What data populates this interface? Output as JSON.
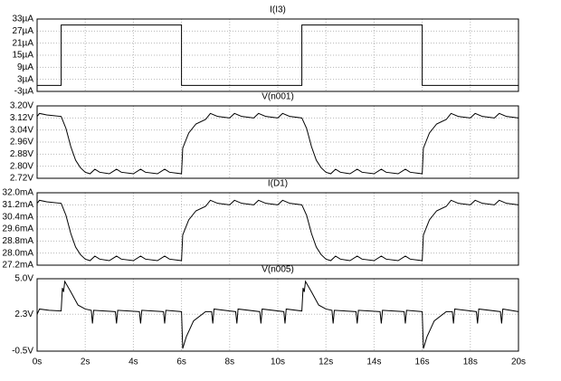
{
  "chart_data": [
    {
      "type": "line",
      "title": "I(I3)",
      "color": "#000000",
      "grid": true,
      "x": [
        0,
        1,
        1,
        6,
        6,
        11,
        11,
        16,
        16,
        20
      ],
      "values": [
        0,
        0,
        30,
        30,
        0,
        0,
        30,
        30,
        0,
        0
      ],
      "xlim": [
        0,
        20
      ],
      "ylim": [
        -3,
        33
      ],
      "yticks": [
        {
          "value": 33,
          "label": "33µA"
        },
        {
          "value": 27,
          "label": "27µA"
        },
        {
          "value": 21,
          "label": "21µA"
        },
        {
          "value": 15,
          "label": "15µA"
        },
        {
          "value": 9,
          "label": "9µA"
        },
        {
          "value": 3,
          "label": "3µA"
        },
        {
          "value": -3,
          "label": "-3µA"
        }
      ]
    },
    {
      "type": "line",
      "title": "V(n001)",
      "color": "#000000",
      "grid": true,
      "x": [
        0,
        0.1,
        0.4,
        1.0,
        1.2,
        1.4,
        1.6,
        1.8,
        2.0,
        2.2,
        2.4,
        2.6,
        3.0,
        3.3,
        3.5,
        4.0,
        4.3,
        4.5,
        5.0,
        5.3,
        5.5,
        6.0,
        6.05,
        6.3,
        6.6,
        7.0,
        7.2,
        7.5,
        8.0,
        8.2,
        8.5,
        9.0,
        9.2,
        9.5,
        10.0,
        10.2,
        10.5,
        11.0,
        11.2,
        11.4,
        11.6,
        11.8,
        12.0,
        12.2,
        12.4,
        12.6,
        13.0,
        13.3,
        13.5,
        14.0,
        14.3,
        14.5,
        15.0,
        15.3,
        15.5,
        16.0,
        16.05,
        16.3,
        16.6,
        17.0,
        17.2,
        17.5,
        18.0,
        18.2,
        18.5,
        19.0,
        19.2,
        19.5,
        20.0
      ],
      "values": [
        3.13,
        3.15,
        3.14,
        3.13,
        3.05,
        2.93,
        2.84,
        2.79,
        2.76,
        2.75,
        2.78,
        2.76,
        2.75,
        2.78,
        2.76,
        2.75,
        2.78,
        2.76,
        2.75,
        2.78,
        2.76,
        2.75,
        2.92,
        3.02,
        3.08,
        3.11,
        3.15,
        3.13,
        3.12,
        3.15,
        3.13,
        3.12,
        3.15,
        3.13,
        3.12,
        3.15,
        3.13,
        3.12,
        3.05,
        2.93,
        2.84,
        2.79,
        2.76,
        2.75,
        2.78,
        2.76,
        2.75,
        2.78,
        2.76,
        2.75,
        2.78,
        2.76,
        2.75,
        2.78,
        2.76,
        2.75,
        2.92,
        3.02,
        3.08,
        3.11,
        3.15,
        3.13,
        3.12,
        3.15,
        3.13,
        3.12,
        3.15,
        3.13,
        3.12
      ],
      "xlim": [
        0,
        20
      ],
      "ylim": [
        2.72,
        3.2
      ],
      "yticks": [
        {
          "value": 3.2,
          "label": "3.20V"
        },
        {
          "value": 3.12,
          "label": "3.12V"
        },
        {
          "value": 3.04,
          "label": "3.04V"
        },
        {
          "value": 2.96,
          "label": "2.96V"
        },
        {
          "value": 2.88,
          "label": "2.88V"
        },
        {
          "value": 2.8,
          "label": "2.80V"
        },
        {
          "value": 2.72,
          "label": "2.72V"
        }
      ]
    },
    {
      "type": "line",
      "title": "I(D1)",
      "color": "#000000",
      "grid": true,
      "x": [
        0,
        0.1,
        0.4,
        1.0,
        1.2,
        1.4,
        1.6,
        1.8,
        2.0,
        2.2,
        2.4,
        2.6,
        3.0,
        3.3,
        3.5,
        4.0,
        4.3,
        4.5,
        5.0,
        5.3,
        5.5,
        6.0,
        6.05,
        6.3,
        6.6,
        7.0,
        7.2,
        7.5,
        8.0,
        8.2,
        8.5,
        9.0,
        9.2,
        9.5,
        10.0,
        10.2,
        10.5,
        11.0,
        11.2,
        11.4,
        11.6,
        11.8,
        12.0,
        12.2,
        12.4,
        12.6,
        13.0,
        13.3,
        13.5,
        14.0,
        14.3,
        14.5,
        15.0,
        15.3,
        15.5,
        16.0,
        16.05,
        16.3,
        16.6,
        17.0,
        17.2,
        17.5,
        18.0,
        18.2,
        18.5,
        19.0,
        19.2,
        19.5,
        20.0
      ],
      "values": [
        31.3,
        31.5,
        31.4,
        31.3,
        30.5,
        29.3,
        28.4,
        27.9,
        27.6,
        27.5,
        27.8,
        27.6,
        27.5,
        27.8,
        27.6,
        27.5,
        27.8,
        27.6,
        27.5,
        27.8,
        27.6,
        27.5,
        29.2,
        30.2,
        30.8,
        31.1,
        31.5,
        31.3,
        31.2,
        31.5,
        31.3,
        31.2,
        31.5,
        31.3,
        31.2,
        31.5,
        31.3,
        31.2,
        30.5,
        29.3,
        28.4,
        27.9,
        27.6,
        27.5,
        27.8,
        27.6,
        27.5,
        27.8,
        27.6,
        27.5,
        27.8,
        27.6,
        27.5,
        27.8,
        27.6,
        27.5,
        29.2,
        30.2,
        30.8,
        31.1,
        31.5,
        31.3,
        31.2,
        31.5,
        31.3,
        31.2,
        31.5,
        31.3,
        31.2
      ],
      "xlim": [
        0,
        20
      ],
      "ylim": [
        27.2,
        32
      ],
      "yticks": [
        {
          "value": 32,
          "label": "32.0mA"
        },
        {
          "value": 31.2,
          "label": "31.2mA"
        },
        {
          "value": 30.4,
          "label": "30.4mA"
        },
        {
          "value": 29.6,
          "label": "29.6mA"
        },
        {
          "value": 28.8,
          "label": "28.8mA"
        },
        {
          "value": 28,
          "label": "28.0mA"
        },
        {
          "value": 27.2,
          "label": "27.2mA"
        }
      ]
    },
    {
      "type": "line",
      "title": "V(n005)",
      "color": "#000000",
      "grid": true,
      "x": [
        0,
        0.1,
        0.5,
        1.0,
        1.05,
        1.1,
        1.15,
        1.4,
        1.7,
        2.0,
        2.25,
        2.3,
        2.35,
        3.25,
        3.3,
        3.35,
        4.25,
        4.3,
        4.35,
        5.25,
        5.3,
        5.35,
        6.0,
        6.05,
        6.2,
        6.5,
        7.0,
        7.25,
        7.3,
        7.35,
        8.25,
        8.3,
        8.35,
        9.25,
        9.3,
        9.35,
        10.25,
        10.3,
        10.35,
        11.0,
        11.05,
        11.1,
        11.15,
        11.4,
        11.7,
        12.0,
        12.25,
        12.3,
        12.35,
        13.25,
        13.3,
        13.35,
        14.25,
        14.3,
        14.35,
        15.25,
        15.3,
        15.35,
        16.0,
        16.05,
        16.2,
        16.5,
        17.0,
        17.25,
        17.3,
        17.35,
        18.25,
        18.3,
        18.35,
        19.25,
        19.3,
        19.35,
        20
      ],
      "values": [
        2.3,
        2.7,
        2.6,
        2.55,
        4.3,
        4.0,
        4.8,
        4.0,
        3.0,
        2.7,
        2.6,
        1.6,
        2.6,
        2.5,
        1.6,
        2.6,
        2.5,
        1.6,
        2.6,
        2.5,
        1.6,
        2.6,
        2.5,
        -0.3,
        0.6,
        1.8,
        2.5,
        2.5,
        1.6,
        2.7,
        2.5,
        1.6,
        2.7,
        2.5,
        1.6,
        2.7,
        2.5,
        1.6,
        2.7,
        2.55,
        4.3,
        4.0,
        4.8,
        4.0,
        3.0,
        2.7,
        2.6,
        1.6,
        2.6,
        2.5,
        1.6,
        2.6,
        2.5,
        1.6,
        2.6,
        2.5,
        1.6,
        2.6,
        2.5,
        -0.3,
        0.6,
        1.8,
        2.5,
        2.5,
        1.6,
        2.7,
        2.5,
        1.6,
        2.7,
        2.5,
        1.6,
        2.7,
        2.5
      ],
      "xlim": [
        0,
        20
      ],
      "ylim": [
        -0.5,
        5
      ],
      "yticks": [
        {
          "value": 5,
          "label": "5.0V"
        },
        {
          "value": 2.3,
          "label": "2.3V"
        },
        {
          "value": -0.5,
          "label": "-0.5V"
        }
      ],
      "xticks": [
        {
          "value": 0,
          "label": "0s"
        },
        {
          "value": 2,
          "label": "2s"
        },
        {
          "value": 4,
          "label": "4s"
        },
        {
          "value": 6,
          "label": "6s"
        },
        {
          "value": 8,
          "label": "8s"
        },
        {
          "value": 10,
          "label": "10s"
        },
        {
          "value": 12,
          "label": "12s"
        },
        {
          "value": 14,
          "label": "14s"
        },
        {
          "value": 16,
          "label": "16s"
        },
        {
          "value": 18,
          "label": "18s"
        },
        {
          "value": 20,
          "label": "20s"
        }
      ]
    }
  ]
}
